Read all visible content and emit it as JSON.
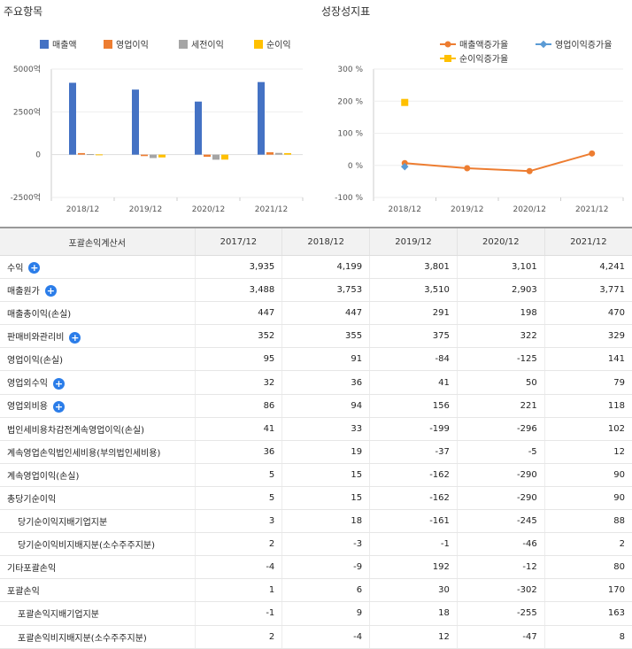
{
  "left_panel": {
    "title": "주요항목",
    "legend": [
      {
        "label": "매출액",
        "color": "#4472c4"
      },
      {
        "label": "영업이익",
        "color": "#ed7d31"
      },
      {
        "label": "세전이익",
        "color": "#a5a5a5"
      },
      {
        "label": "순이익",
        "color": "#ffc000"
      }
    ]
  },
  "right_panel": {
    "title": "성장성지표",
    "legend": [
      {
        "label": "매출액증가율",
        "color": "#ed7d31"
      },
      {
        "label": "영업이익증가율",
        "color": "#5b9bd5"
      },
      {
        "label": "순이익증가율",
        "color": "#ffc000"
      }
    ]
  },
  "chart_data": [
    {
      "type": "bar",
      "categories": [
        "2018/12",
        "2019/12",
        "2020/12",
        "2021/12"
      ],
      "series": [
        {
          "name": "매출액",
          "values": [
            4199,
            3801,
            3101,
            4241
          ]
        },
        {
          "name": "영업이익",
          "values": [
            91,
            -84,
            -125,
            141
          ]
        },
        {
          "name": "세전이익",
          "values": [
            33,
            -199,
            -296,
            102
          ]
        },
        {
          "name": "순이익",
          "values": [
            15,
            -162,
            -290,
            90
          ]
        }
      ],
      "ytick_labels": [
        "5000억",
        "2500억",
        "0",
        "-2500억"
      ],
      "yticks": [
        5000,
        2500,
        0,
        -2500
      ],
      "ylim": [
        -2500,
        5000
      ],
      "grid": true,
      "legend_position": "top"
    },
    {
      "type": "line",
      "categories": [
        "2018/12",
        "2019/12",
        "2020/12",
        "2021/12"
      ],
      "series": [
        {
          "name": "매출액증가율",
          "values": [
            7,
            -9,
            -18,
            37
          ]
        },
        {
          "name": "영업이익증가율",
          "values": [
            -4,
            null,
            null,
            null
          ]
        },
        {
          "name": "순이익증가율",
          "values": [
            196,
            null,
            null,
            null
          ]
        }
      ],
      "ytick_labels": [
        "300 %",
        "200 %",
        "100 %",
        "0 %",
        "-100 %"
      ],
      "yticks": [
        300,
        200,
        100,
        0,
        -100
      ],
      "ylim": [
        -100,
        300
      ],
      "grid": true,
      "legend_position": "top"
    }
  ],
  "table": {
    "headers": [
      "포괄손익계산서",
      "2017/12",
      "2018/12",
      "2019/12",
      "2020/12",
      "2021/12"
    ],
    "rows": [
      {
        "label": "수익",
        "expand": true,
        "indent": false,
        "values": [
          "3,935",
          "4,199",
          "3,801",
          "3,101",
          "4,241"
        ]
      },
      {
        "label": "매출원가",
        "expand": true,
        "indent": false,
        "values": [
          "3,488",
          "3,753",
          "3,510",
          "2,903",
          "3,771"
        ]
      },
      {
        "label": "매출총이익(손실)",
        "expand": false,
        "indent": false,
        "values": [
          "447",
          "447",
          "291",
          "198",
          "470"
        ]
      },
      {
        "label": "판매비와관리비",
        "expand": true,
        "indent": false,
        "values": [
          "352",
          "355",
          "375",
          "322",
          "329"
        ]
      },
      {
        "label": "영업이익(손실)",
        "expand": false,
        "indent": false,
        "values": [
          "95",
          "91",
          "-84",
          "-125",
          "141"
        ]
      },
      {
        "label": "영업외수익",
        "expand": true,
        "indent": false,
        "values": [
          "32",
          "36",
          "41",
          "50",
          "79"
        ]
      },
      {
        "label": "영업외비용",
        "expand": true,
        "indent": false,
        "values": [
          "86",
          "94",
          "156",
          "221",
          "118"
        ]
      },
      {
        "label": "법인세비용차감전계속영업이익(손실)",
        "expand": false,
        "indent": false,
        "values": [
          "41",
          "33",
          "-199",
          "-296",
          "102"
        ]
      },
      {
        "label": "계속영업손익법인세비용(부의법인세비용)",
        "expand": false,
        "indent": false,
        "values": [
          "36",
          "19",
          "-37",
          "-5",
          "12"
        ]
      },
      {
        "label": "계속영업이익(손실)",
        "expand": false,
        "indent": false,
        "values": [
          "5",
          "15",
          "-162",
          "-290",
          "90"
        ]
      },
      {
        "label": "총당기순이익",
        "expand": false,
        "indent": false,
        "values": [
          "5",
          "15",
          "-162",
          "-290",
          "90"
        ]
      },
      {
        "label": "당기순이익지배기업지분",
        "expand": false,
        "indent": true,
        "values": [
          "3",
          "18",
          "-161",
          "-245",
          "88"
        ]
      },
      {
        "label": "당기순이익비지배지분(소수주주지분)",
        "expand": false,
        "indent": true,
        "values": [
          "2",
          "-3",
          "-1",
          "-46",
          "2"
        ]
      },
      {
        "label": "기타포괄손익",
        "expand": false,
        "indent": false,
        "values": [
          "-4",
          "-9",
          "192",
          "-12",
          "80"
        ]
      },
      {
        "label": "포괄손익",
        "expand": false,
        "indent": false,
        "values": [
          "1",
          "6",
          "30",
          "-302",
          "170"
        ]
      },
      {
        "label": "포괄손익지배기업지분",
        "expand": false,
        "indent": true,
        "values": [
          "-1",
          "9",
          "18",
          "-255",
          "163"
        ]
      },
      {
        "label": "포괄손익비지배지분(소수주주지분)",
        "expand": false,
        "indent": true,
        "values": [
          "2",
          "-4",
          "12",
          "-47",
          "8"
        ]
      }
    ]
  }
}
